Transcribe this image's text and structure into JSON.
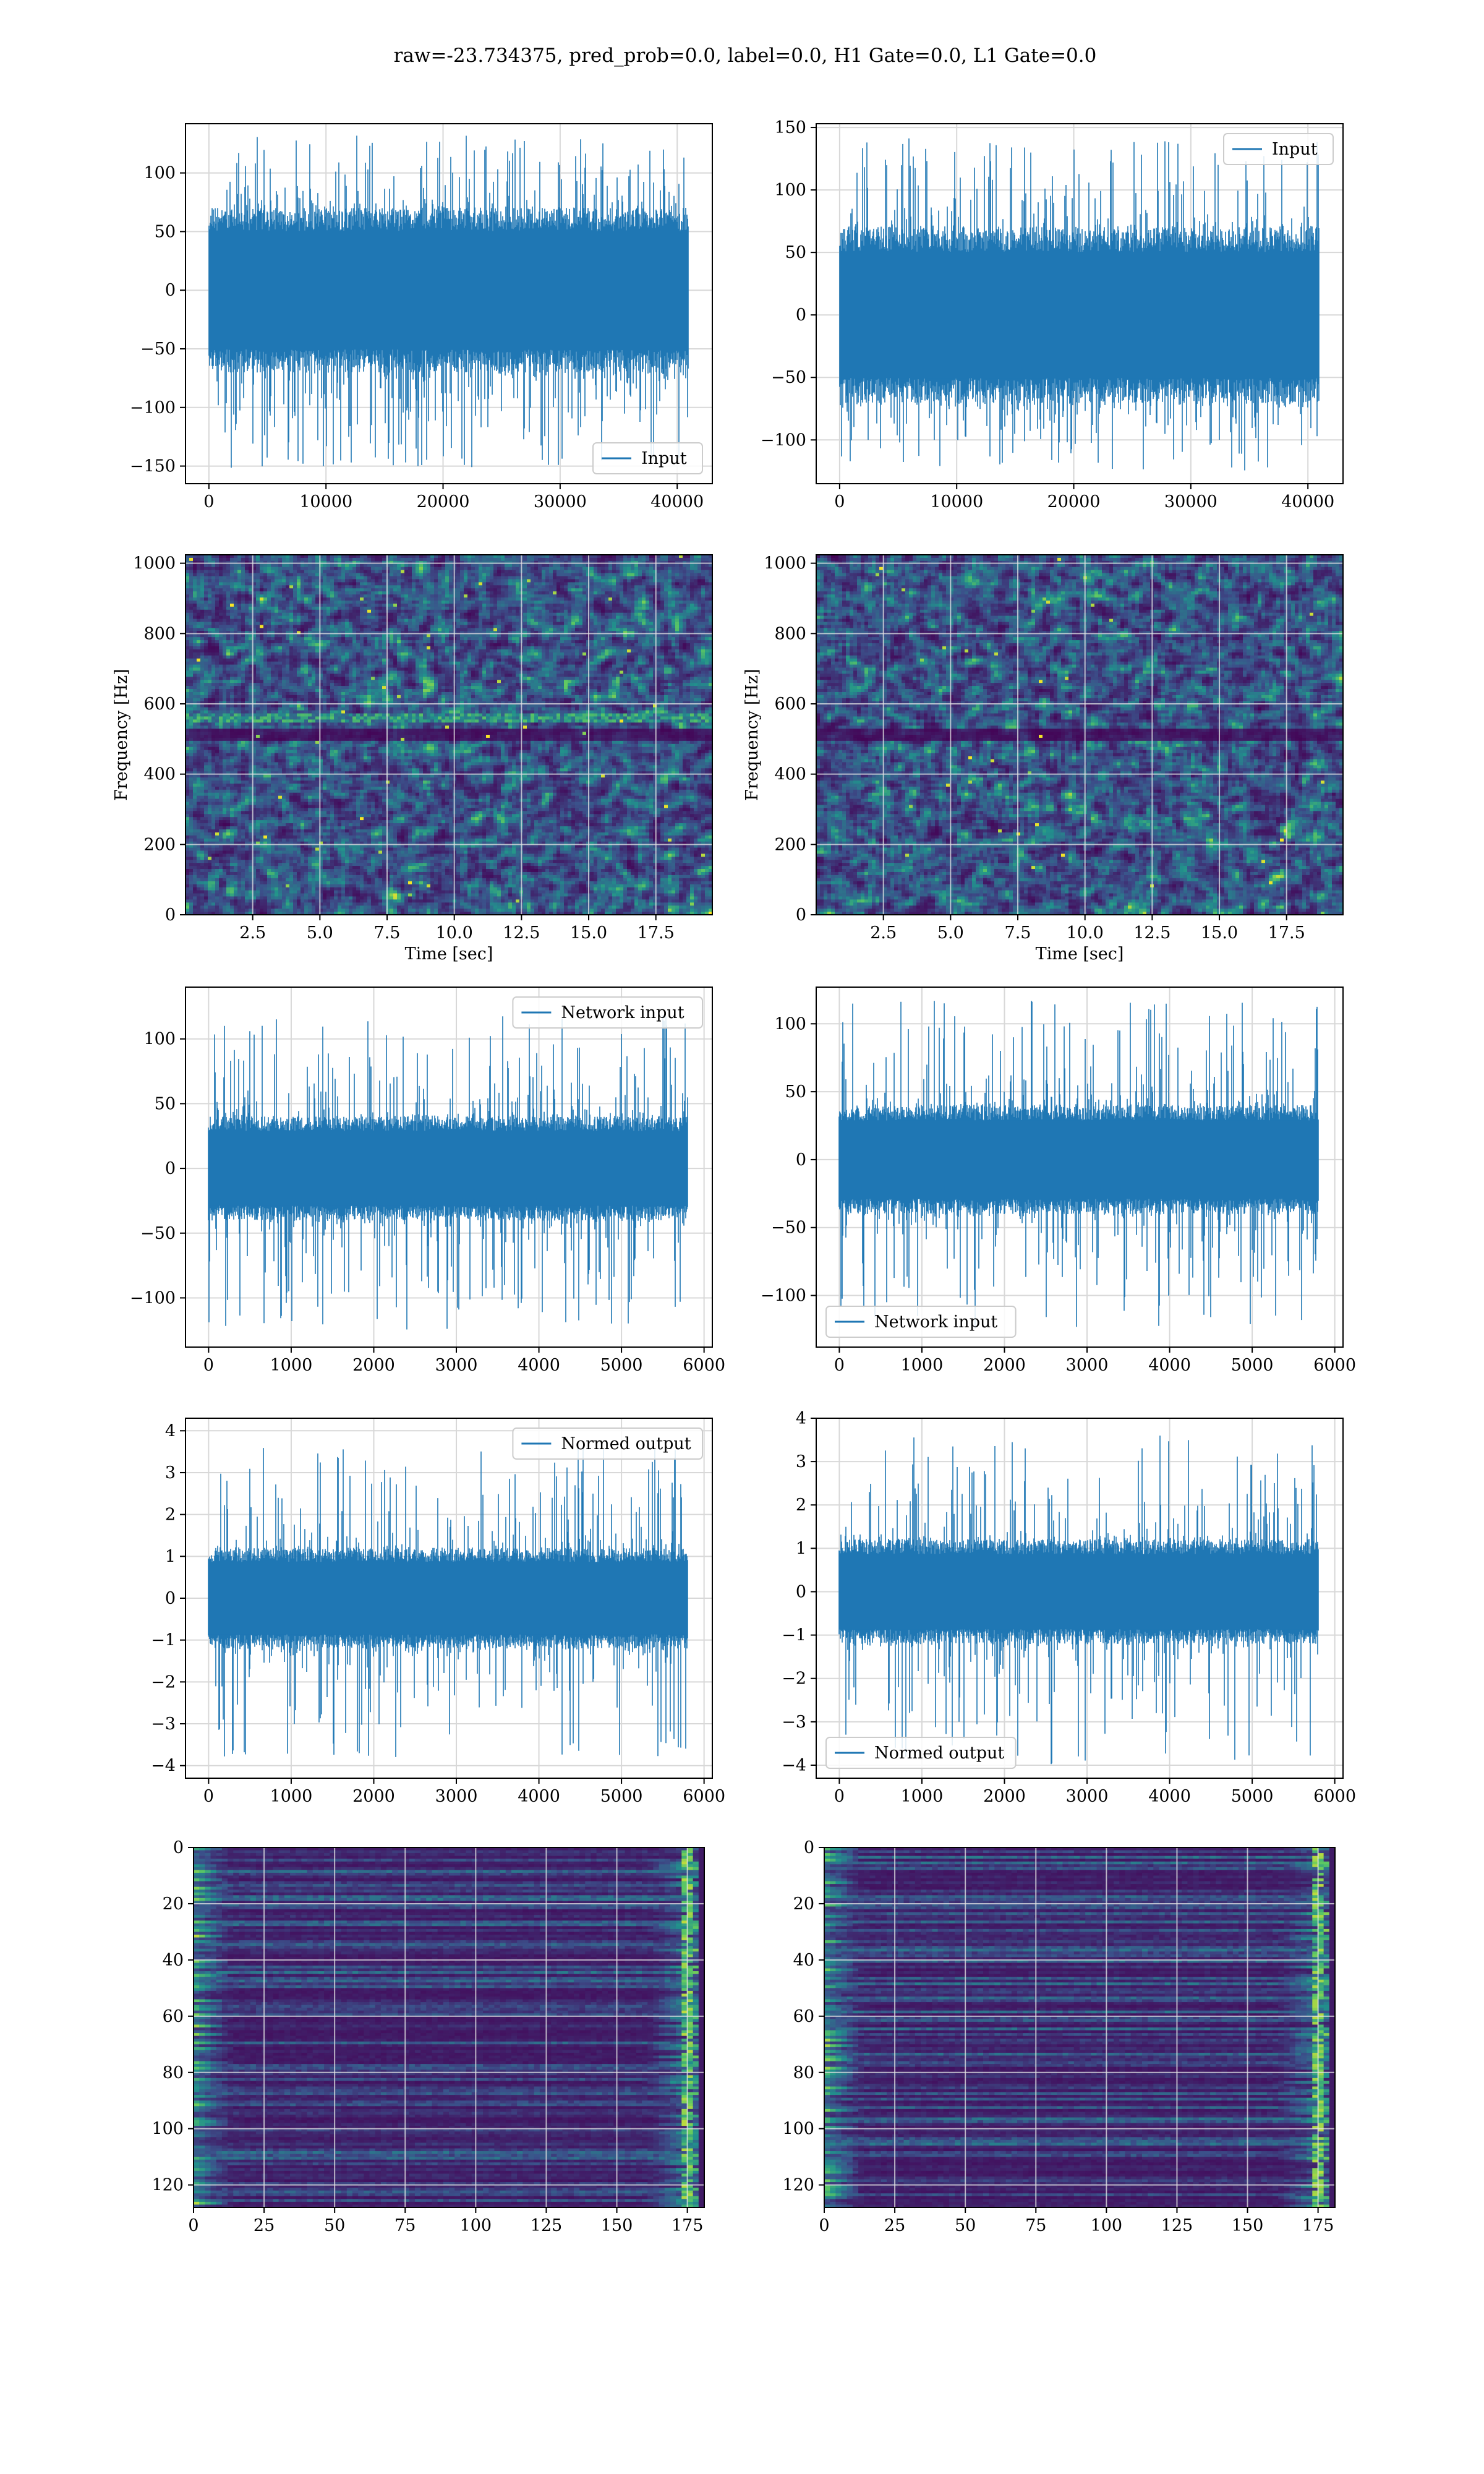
{
  "title": "raw=-23.734375, pred_prob=0.0, label=0.0, H1 Gate=0.0, L1 Gate=0.0",
  "colors": {
    "series": "#1f77b4",
    "grid": "#d8d8d8",
    "viridis_dark": "#440154"
  },
  "chart_data": [
    {
      "type": "line",
      "name": "plot-input-h1",
      "x_range": [
        0,
        40960
      ],
      "xlim": [
        -2000,
        43000
      ],
      "ylim": [
        -165,
        142
      ],
      "xticks": [
        0,
        10000,
        20000,
        30000,
        40000
      ],
      "xtick_labels": [
        "0",
        "10000",
        "20000",
        "30000",
        "40000"
      ],
      "yticks": [
        -150,
        -100,
        -50,
        0,
        50,
        100
      ],
      "ytick_labels": [
        "−150",
        "−100",
        "−50",
        "0",
        "50",
        "100"
      ],
      "amplitude": {
        "core": 70,
        "spike_max": 132,
        "spike_min": -152
      },
      "legend": {
        "label": "Input",
        "loc": "lower-right"
      },
      "seed": 11,
      "xlabel": "",
      "ylabel": "",
      "grid": true
    },
    {
      "type": "line",
      "name": "plot-input-l1",
      "x_range": [
        0,
        40960
      ],
      "xlim": [
        -2000,
        43000
      ],
      "ylim": [
        -135,
        153
      ],
      "xticks": [
        0,
        10000,
        20000,
        30000,
        40000
      ],
      "xtick_labels": [
        "0",
        "10000",
        "20000",
        "30000",
        "40000"
      ],
      "yticks": [
        -100,
        -50,
        0,
        50,
        100,
        150
      ],
      "ytick_labels": [
        "−100",
        "−50",
        "0",
        "50",
        "100",
        "150"
      ],
      "amplitude": {
        "core": 70,
        "spike_max": 142,
        "spike_min": -125
      },
      "legend": {
        "label": "Input",
        "loc": "upper-right"
      },
      "seed": 23,
      "xlabel": "",
      "ylabel": "",
      "grid": true
    },
    {
      "type": "heatmap",
      "name": "spectrogram-h1",
      "xlim": [
        0,
        19.6
      ],
      "ylim": [
        0,
        1024
      ],
      "xticks": [
        2.5,
        5.0,
        7.5,
        10.0,
        12.5,
        15.0,
        17.5
      ],
      "xtick_labels": [
        "2.5",
        "5.0",
        "7.5",
        "10.0",
        "12.5",
        "15.0",
        "17.5"
      ],
      "yticks": [
        0,
        200,
        400,
        600,
        800,
        1000
      ],
      "ytick_labels": [
        "0",
        "200",
        "400",
        "600",
        "800",
        "1000"
      ],
      "xlabel": "Time [sec]",
      "ylabel": "Frequency [Hz]",
      "bright_band_hz": 560,
      "dark_band_hz": 510,
      "seed": 5,
      "grid": true
    },
    {
      "type": "heatmap",
      "name": "spectrogram-l1",
      "xlim": [
        0,
        19.6
      ],
      "ylim": [
        0,
        1024
      ],
      "xticks": [
        2.5,
        5.0,
        7.5,
        10.0,
        12.5,
        15.0,
        17.5
      ],
      "xtick_labels": [
        "2.5",
        "5.0",
        "7.5",
        "10.0",
        "12.5",
        "15.0",
        "17.5"
      ],
      "yticks": [
        0,
        200,
        400,
        600,
        800,
        1000
      ],
      "ytick_labels": [
        "0",
        "200",
        "400",
        "600",
        "800",
        "1000"
      ],
      "xlabel": "Time [sec]",
      "ylabel": "Frequency [Hz]",
      "bright_band_hz": null,
      "dark_band_hz": 510,
      "seed": 9,
      "grid": true
    },
    {
      "type": "line",
      "name": "plot-network-input-h1",
      "x_range": [
        0,
        5800
      ],
      "xlim": [
        -280,
        6100
      ],
      "ylim": [
        -138,
        140
      ],
      "xticks": [
        0,
        1000,
        2000,
        3000,
        4000,
        5000,
        6000
      ],
      "xtick_labels": [
        "0",
        "1000",
        "2000",
        "3000",
        "4000",
        "5000",
        "6000"
      ],
      "yticks": [
        -100,
        -50,
        0,
        50,
        100
      ],
      "ytick_labels": [
        "−100",
        "−50",
        "0",
        "50",
        "100"
      ],
      "amplitude": {
        "core": 40,
        "spike_max": 118,
        "spike_min": -125
      },
      "legend": {
        "label": "Network input",
        "loc": "upper-right"
      },
      "seed": 31,
      "xlabel": "",
      "ylabel": "",
      "grid": true
    },
    {
      "type": "line",
      "name": "plot-network-input-l1",
      "x_range": [
        0,
        5800
      ],
      "xlim": [
        -280,
        6100
      ],
      "ylim": [
        -138,
        127
      ],
      "xticks": [
        0,
        1000,
        2000,
        3000,
        4000,
        5000,
        6000
      ],
      "xtick_labels": [
        "0",
        "1000",
        "2000",
        "3000",
        "4000",
        "5000",
        "6000"
      ],
      "yticks": [
        -100,
        -50,
        0,
        50,
        100
      ],
      "ytick_labels": [
        "−100",
        "−50",
        "0",
        "50",
        "100"
      ],
      "amplitude": {
        "core": 40,
        "spike_max": 118,
        "spike_min": -125
      },
      "legend": {
        "label": "Network input",
        "loc": "lower-left"
      },
      "seed": 47,
      "xlabel": "",
      "ylabel": "",
      "grid": true
    },
    {
      "type": "line",
      "name": "plot-normed-output-h1",
      "x_range": [
        0,
        5800
      ],
      "xlim": [
        -280,
        6100
      ],
      "ylim": [
        -4.3,
        4.3
      ],
      "xticks": [
        0,
        1000,
        2000,
        3000,
        4000,
        5000,
        6000
      ],
      "xtick_labels": [
        "0",
        "1000",
        "2000",
        "3000",
        "4000",
        "5000",
        "6000"
      ],
      "yticks": [
        -4,
        -3,
        -2,
        -1,
        0,
        1,
        2,
        3,
        4
      ],
      "ytick_labels": [
        "−4",
        "−3",
        "−2",
        "−1",
        "0",
        "1",
        "2",
        "3",
        "4"
      ],
      "amplitude": {
        "core": 1.2,
        "spike_max": 3.7,
        "spike_min": -3.9
      },
      "legend": {
        "label": "Normed output",
        "loc": "upper-right"
      },
      "seed": 53,
      "xlabel": "",
      "ylabel": "",
      "grid": true
    },
    {
      "type": "line",
      "name": "plot-normed-output-l1",
      "x_range": [
        0,
        5800
      ],
      "xlim": [
        -280,
        6100
      ],
      "ylim": [
        -4.3,
        4.0
      ],
      "xticks": [
        0,
        1000,
        2000,
        3000,
        4000,
        5000,
        6000
      ],
      "xtick_labels": [
        "0",
        "1000",
        "2000",
        "3000",
        "4000",
        "5000",
        "6000"
      ],
      "yticks": [
        -4,
        -3,
        -2,
        -1,
        0,
        1,
        2,
        3,
        4
      ],
      "ytick_labels": [
        "−4",
        "−3",
        "−2",
        "−1",
        "0",
        "1",
        "2",
        "3",
        "4"
      ],
      "amplitude": {
        "core": 1.2,
        "spike_max": 3.6,
        "spike_min": -4.0
      },
      "legend": {
        "label": "Normed output",
        "loc": "lower-left"
      },
      "seed": 67,
      "xlabel": "",
      "ylabel": "",
      "grid": true
    },
    {
      "type": "heatmap",
      "name": "feature-map-h1",
      "xlim": [
        0,
        181
      ],
      "ylim": [
        128,
        0
      ],
      "xticks": [
        0,
        25,
        50,
        75,
        100,
        125,
        150,
        175
      ],
      "xtick_labels": [
        "0",
        "25",
        "50",
        "75",
        "100",
        "125",
        "150",
        "175"
      ],
      "yticks": [
        0,
        20,
        40,
        60,
        80,
        100,
        120
      ],
      "ytick_labels": [
        "0",
        "20",
        "40",
        "60",
        "80",
        "100",
        "120"
      ],
      "xlabel": "",
      "ylabel": "",
      "seed": 71,
      "grid": true
    },
    {
      "type": "heatmap",
      "name": "feature-map-l1",
      "xlim": [
        0,
        181
      ],
      "ylim": [
        128,
        0
      ],
      "xticks": [
        0,
        25,
        50,
        75,
        100,
        125,
        150,
        175
      ],
      "xtick_labels": [
        "0",
        "25",
        "50",
        "75",
        "100",
        "125",
        "150",
        "175"
      ],
      "yticks": [
        0,
        20,
        40,
        60,
        80,
        100,
        120
      ],
      "ytick_labels": [
        "0",
        "20",
        "40",
        "60",
        "80",
        "100",
        "120"
      ],
      "xlabel": "",
      "ylabel": "",
      "seed": 83,
      "grid": true
    }
  ]
}
